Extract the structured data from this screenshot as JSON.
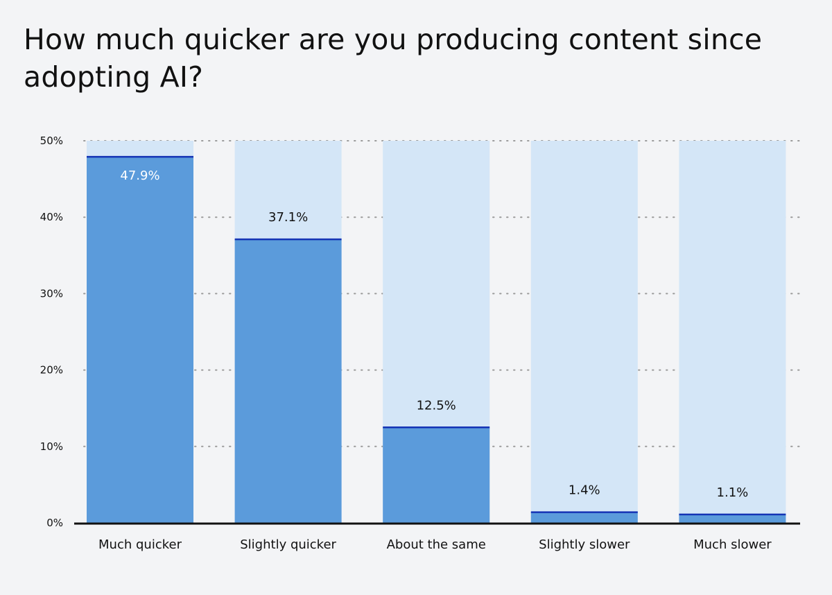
{
  "title": "How much quicker are you producing content since adopting AI?",
  "colors": {
    "bar_fill": "#5b9bdb",
    "bar_track": "#d4e6f7",
    "bar_top_line": "#1433b5",
    "axis": "#111111",
    "grid": "#9a9a9a",
    "background": "#f3f4f6",
    "label_inside": "#ffffff",
    "label_outside": "#111111"
  },
  "chart_data": {
    "type": "bar",
    "title": "How much quicker are you producing content since adopting AI?",
    "xlabel": "",
    "ylabel": "",
    "categories": [
      "Much quicker",
      "Slightly quicker",
      "About the same",
      "Slightly slower",
      "Much slower"
    ],
    "values": [
      47.9,
      37.1,
      12.5,
      1.4,
      1.1
    ],
    "value_labels": [
      "47.9%",
      "37.1%",
      "12.5%",
      "1.4%",
      "1.1%"
    ],
    "ylim": [
      0,
      50
    ],
    "yticks": [
      0,
      10,
      20,
      30,
      40,
      50
    ],
    "ytick_labels": [
      "0%",
      "10%",
      "20%",
      "30%",
      "40%",
      "50%"
    ],
    "grid": "horizontal-dotted",
    "legend": "none"
  }
}
